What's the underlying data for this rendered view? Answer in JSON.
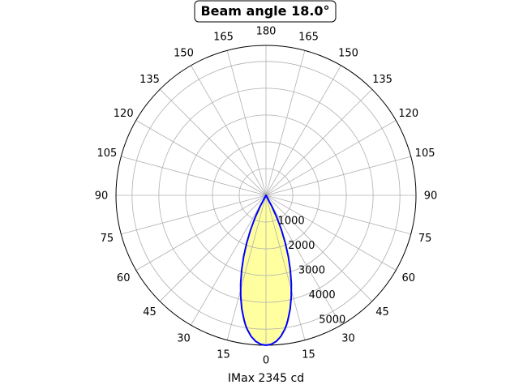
{
  "chart_data": {
    "type": "line",
    "projection": "polar",
    "title": "Beam angle 18.0°",
    "xlabel": "IMax 2345 cd",
    "angle_tick_labels": [
      "180",
      "165",
      "150",
      "135",
      "120",
      "105",
      "90",
      "75",
      "60",
      "45",
      "30",
      "15",
      "0",
      "15",
      "30",
      "45",
      "60",
      "75",
      "90",
      "105",
      "120",
      "135",
      "150",
      "165"
    ],
    "radial_tick_labels": [
      "1000",
      "2000",
      "3000",
      "4000",
      "5000"
    ],
    "radial_ticks": [
      1000,
      2000,
      3000,
      4000,
      5000
    ],
    "rlim": [
      0,
      5600
    ],
    "grid": true,
    "series": [
      {
        "x": [
          0,
          2,
          4,
          6,
          8,
          9,
          10,
          12,
          14,
          16,
          18,
          20,
          22,
          24,
          26,
          28,
          30
        ],
        "y": [
          5600,
          5570,
          5470,
          5300,
          5050,
          4900,
          4720,
          4340,
          3900,
          3430,
          2940,
          2440,
          1930,
          1430,
          940,
          450,
          0
        ]
      }
    ],
    "colors": {
      "line": "#0000ff",
      "fill": "#ffffa0",
      "grid": "#b0b0b0"
    }
  }
}
